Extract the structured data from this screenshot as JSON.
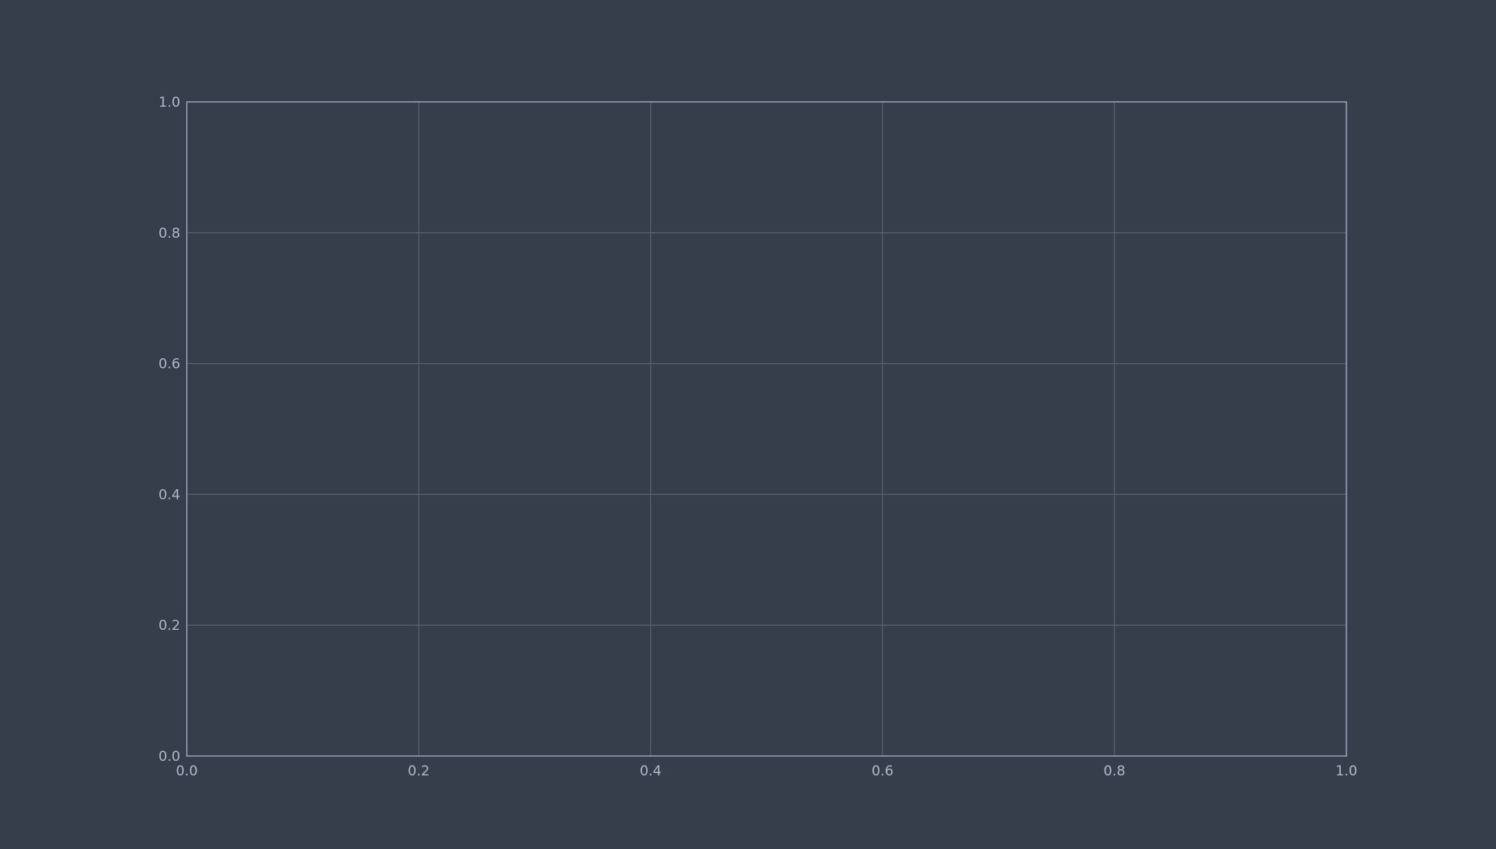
{
  "chart_data": {
    "type": "line",
    "title": "",
    "xlabel": "",
    "ylabel": "",
    "xlim": [
      0,
      1
    ],
    "ylim": [
      0,
      1
    ],
    "xticks": [
      0,
      0.2,
      0.4,
      0.6,
      0.8,
      1
    ],
    "yticks": [
      0,
      0.2,
      0.4,
      0.6,
      0.8,
      1
    ],
    "xtick_labels": [
      "0.0",
      "0.2",
      "0.4",
      "0.6",
      "0.8",
      "1.0"
    ],
    "ytick_labels": [
      "0.0",
      "0.2",
      "0.4",
      "0.6",
      "0.8",
      "1.0"
    ],
    "grid": true,
    "series": []
  },
  "colors": {
    "background": "#363d4b",
    "plot_area": "#363d4b",
    "grid": "#56606f",
    "axes": "#8d9ab0",
    "tick_text": "#aeb8ca"
  }
}
